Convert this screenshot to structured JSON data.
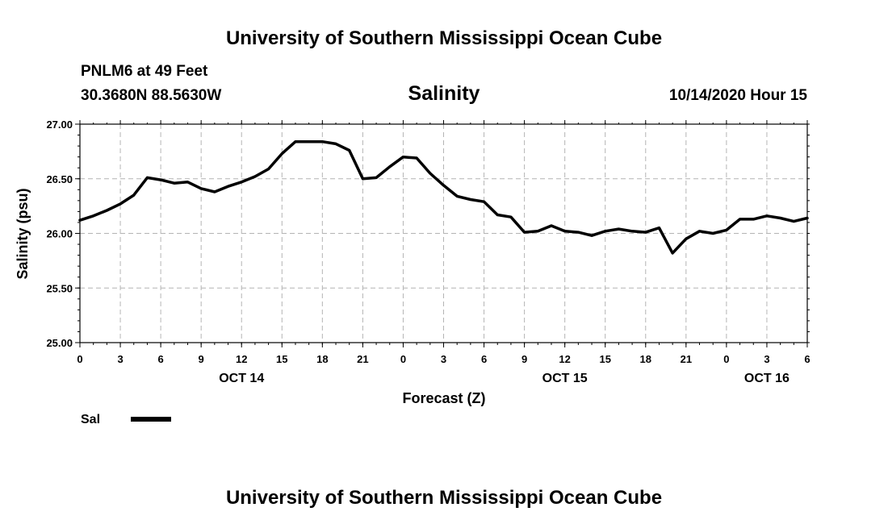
{
  "header": {
    "title": "University of Southern Mississippi Ocean Cube",
    "station": "PNLM6 at 49 Feet",
    "coords": "30.3680N 88.5630W",
    "variable": "Salinity",
    "issued": "10/14/2020 Hour 15"
  },
  "footer": {
    "title": "University of Southern Mississippi Ocean Cube"
  },
  "legend": {
    "label": "Sal",
    "color": "#000000"
  },
  "chart_data": {
    "type": "line",
    "title": "Salinity",
    "xlabel": "Forecast (Z)",
    "ylabel": "Salinity (psu)",
    "xlim": [
      0,
      54
    ],
    "ylim": [
      25.0,
      27.0
    ],
    "yticks": [
      "25.00",
      "25.50",
      "26.00",
      "26.50",
      "27.00"
    ],
    "ytick_values": [
      25.0,
      25.5,
      26.0,
      26.5,
      27.0
    ],
    "xticks": [
      0,
      3,
      6,
      9,
      12,
      15,
      18,
      21,
      24,
      27,
      30,
      33,
      36,
      39,
      42,
      45,
      48,
      51,
      54
    ],
    "xtick_labels": [
      "0",
      "3",
      "6",
      "9",
      "12",
      "15",
      "18",
      "21",
      "0",
      "3",
      "6",
      "9",
      "12",
      "15",
      "18",
      "21",
      "0",
      "3",
      "6"
    ],
    "date_labels": [
      {
        "hour": 12,
        "label": "OCT 14"
      },
      {
        "hour": 36,
        "label": "OCT 15"
      },
      {
        "hour": 51,
        "label": "OCT 16"
      }
    ],
    "grid": true,
    "series": [
      {
        "name": "Sal",
        "x": [
          0,
          1,
          2,
          3,
          4,
          5,
          6,
          7,
          8,
          9,
          10,
          11,
          12,
          13,
          14,
          15,
          16,
          17,
          18,
          19,
          20,
          21,
          22,
          23,
          24,
          25,
          26,
          27,
          28,
          29,
          30,
          31,
          32,
          33,
          34,
          35,
          36,
          37,
          38,
          39,
          40,
          41,
          42,
          43,
          44,
          45,
          46,
          47,
          48,
          49,
          50,
          51,
          52,
          53,
          54
        ],
        "values": [
          26.12,
          26.16,
          26.21,
          26.27,
          26.35,
          26.51,
          26.49,
          26.46,
          26.47,
          26.41,
          26.38,
          26.43,
          26.47,
          26.52,
          26.59,
          26.73,
          26.84,
          26.84,
          26.84,
          26.82,
          26.76,
          26.5,
          26.51,
          26.61,
          26.7,
          26.69,
          26.55,
          26.44,
          26.34,
          26.31,
          26.29,
          26.17,
          26.15,
          26.01,
          26.02,
          26.07,
          26.02,
          26.01,
          25.98,
          26.02,
          26.04,
          26.02,
          26.01,
          26.05,
          25.82,
          25.95,
          26.02,
          26.0,
          26.03,
          26.13,
          26.13,
          26.16,
          26.14,
          26.11,
          26.14
        ]
      }
    ]
  }
}
